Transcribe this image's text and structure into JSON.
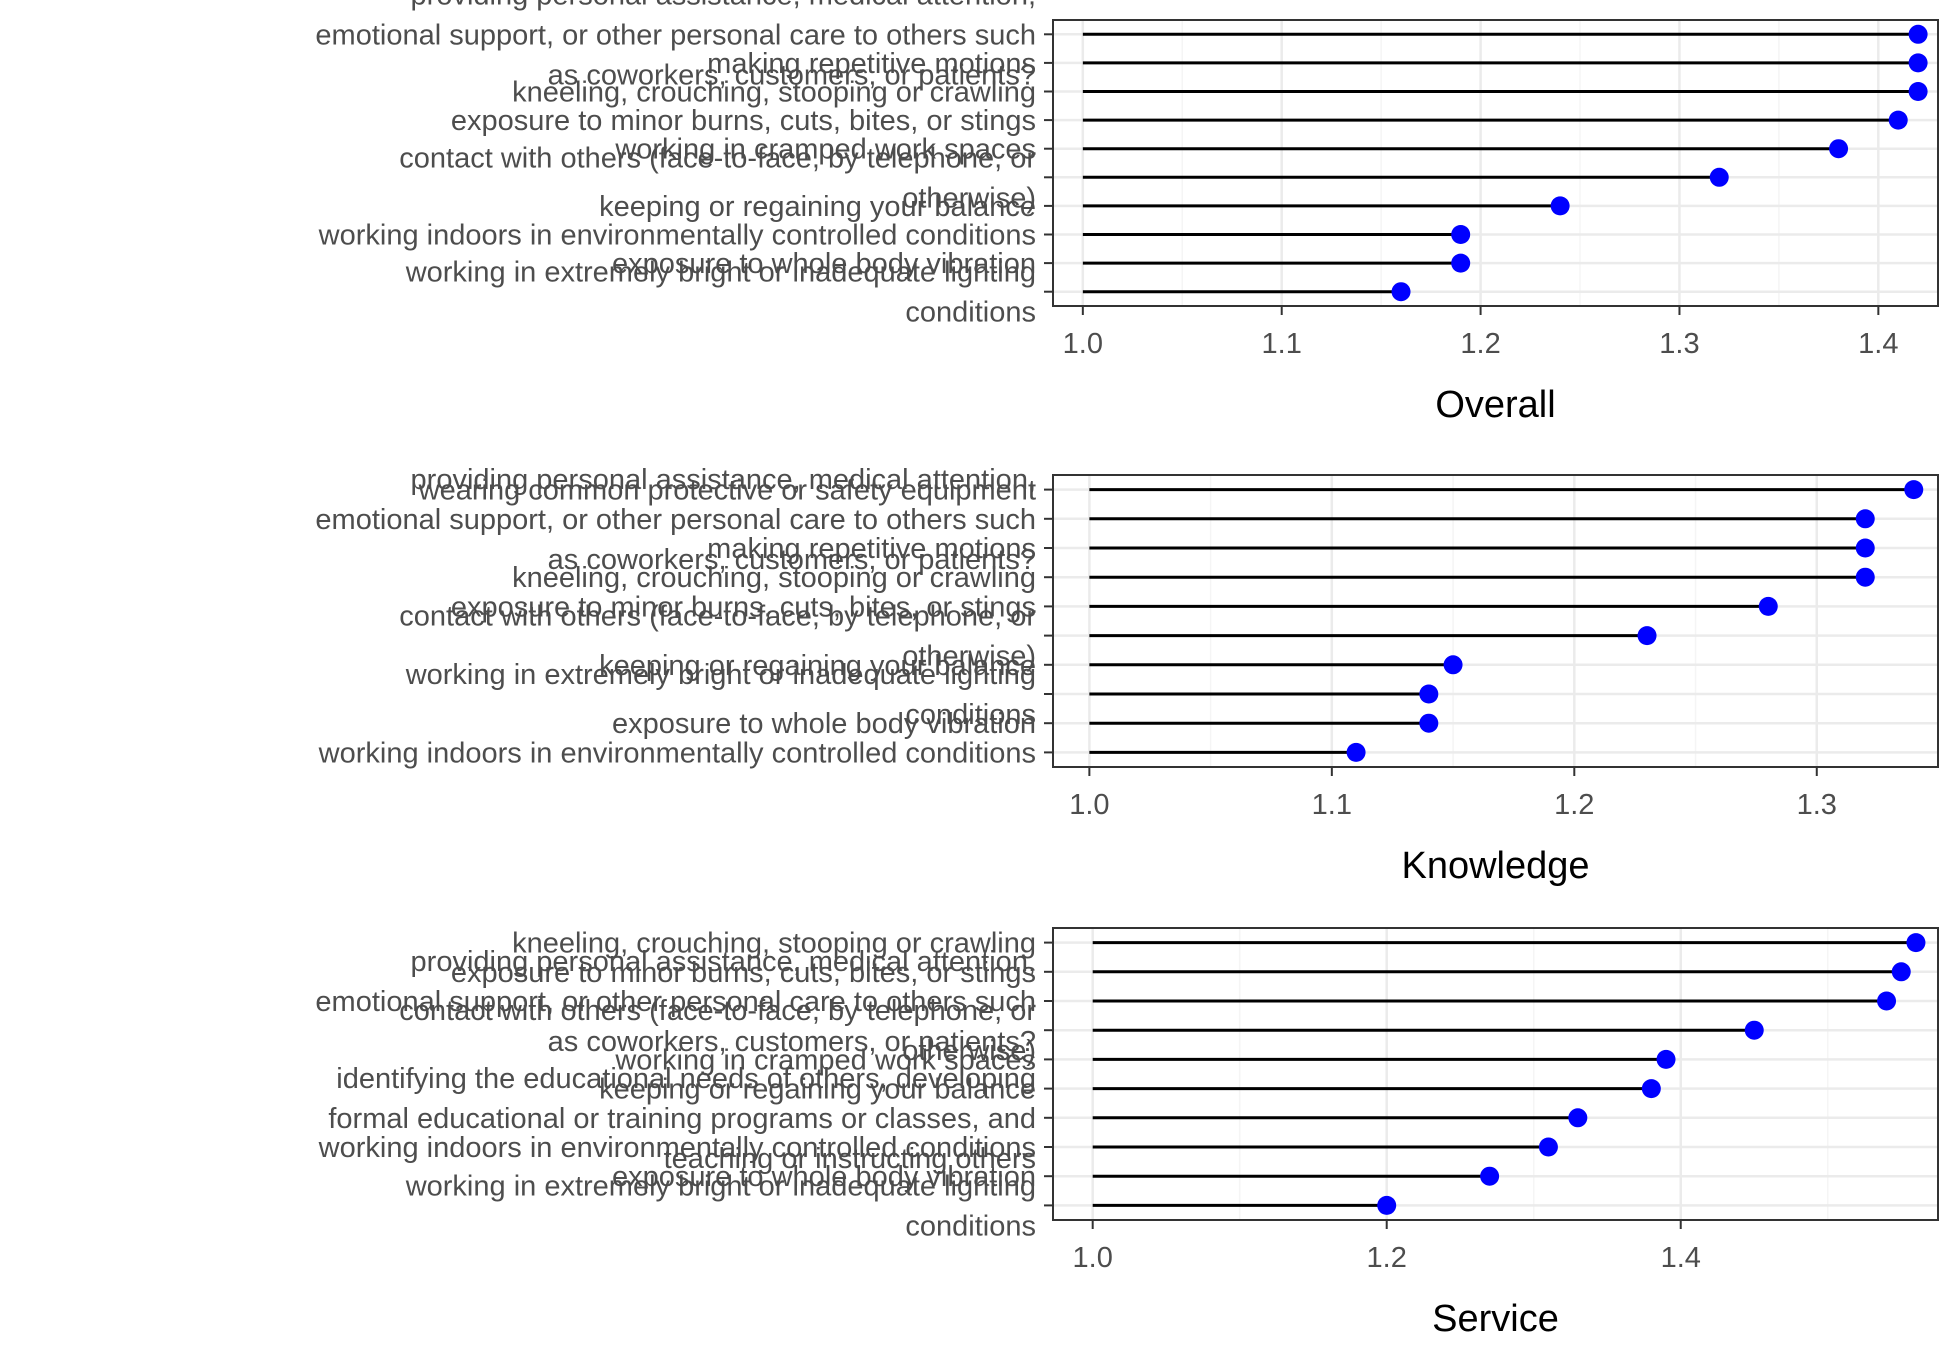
{
  "chart_data": [
    {
      "type": "lollipop",
      "xlabel": "Overall",
      "xlim": [
        0.985,
        1.43
      ],
      "xticks": [
        1.0,
        1.1,
        1.2,
        1.3,
        1.4
      ],
      "tick_labels": [
        "1.0",
        "1.1",
        "1.2",
        "1.3",
        "1.4"
      ],
      "grid": true,
      "categories": [
        "providing personal assistance, medical attention, emotional support, or other personal care to others such as coworkers, customers, or patients?",
        "making repetitive motions",
        "kneeling, crouching, stooping or crawling",
        "exposure to minor burns, cuts, bites, or stings",
        "working in cramped work spaces",
        "contact with others (face-to-face, by telephone, or otherwise)",
        "keeping or regaining your balance",
        "working indoors in environmentally controlled conditions",
        "exposure to whole body vibration",
        "working in extremely bright or inadequate lighting conditions"
      ],
      "values": [
        1.42,
        1.42,
        1.42,
        1.41,
        1.38,
        1.32,
        1.24,
        1.19,
        1.19,
        1.16
      ]
    },
    {
      "type": "lollipop",
      "xlabel": "Knowledge",
      "xlim": [
        0.985,
        1.35
      ],
      "xticks": [
        1.0,
        1.1,
        1.2,
        1.3
      ],
      "tick_labels": [
        "1.0",
        "1.1",
        "1.2",
        "1.3"
      ],
      "grid": true,
      "categories": [
        "wearing common protective or safety equipment",
        "providing personal assistance, medical attention, emotional support, or other personal care to others such as coworkers, customers, or patients?",
        "making repetitive motions",
        "kneeling, crouching, stooping or crawling",
        "exposure to minor burns, cuts, bites, or stings",
        "contact with others (face-to-face, by telephone, or otherwise)",
        "keeping or regaining your balance",
        "working in extremely bright or inadequate lighting conditions",
        "exposure to whole body vibration",
        "working indoors in environmentally controlled conditions"
      ],
      "values": [
        1.34,
        1.32,
        1.32,
        1.32,
        1.28,
        1.23,
        1.15,
        1.14,
        1.14,
        1.11
      ]
    },
    {
      "type": "lollipop",
      "xlabel": "Service",
      "xlim": [
        0.973,
        1.575
      ],
      "xticks": [
        1.0,
        1.2,
        1.4
      ],
      "tick_labels": [
        "1.0",
        "1.2",
        "1.4"
      ],
      "grid": true,
      "categories": [
        "kneeling, crouching, stooping or crawling",
        "exposure to minor burns, cuts, bites, or stings",
        "providing personal assistance, medical attention, emotional support, or other personal care to others such as coworkers, customers, or patients?",
        "contact with others (face-to-face, by telephone, or otherwise)",
        "working in cramped work spaces",
        "keeping or regaining your balance",
        "identifying the educational needs of others, developing formal educational or training programs or classes, and teaching or instructing others",
        "working indoors in environmentally controlled conditions",
        "exposure to whole body vibration",
        "working in extremely bright or inadequate lighting conditions"
      ],
      "values": [
        1.56,
        1.55,
        1.54,
        1.45,
        1.39,
        1.38,
        1.33,
        1.31,
        1.27,
        1.2
      ]
    }
  ],
  "colors": {
    "point": "#0000ff",
    "segment": "#000000",
    "grid_major": "#ebebeb",
    "grid_minor": "#f5f5f5",
    "panel_border": "#333333",
    "label_text": "#4d4d4d"
  }
}
